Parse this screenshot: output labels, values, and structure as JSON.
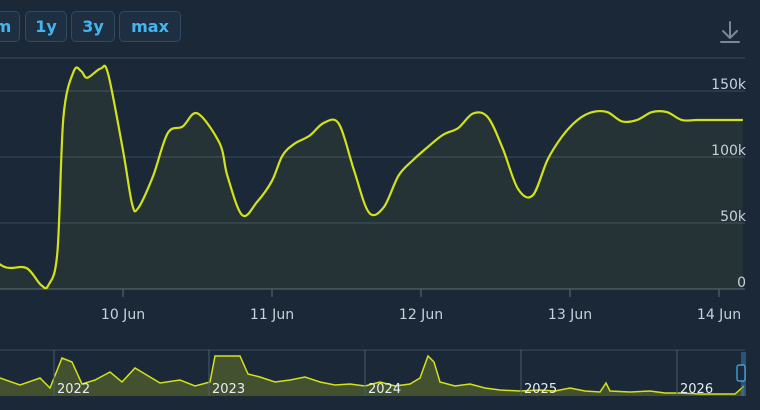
{
  "range_buttons": [
    "m",
    "1y",
    "3y",
    "max"
  ],
  "download_icon": "download-icon",
  "colors": {
    "background": "#1b2838",
    "line": "#d2e21a",
    "grid": "#3a4d62",
    "label": "#c7d2dc",
    "button_text": "#45b5f0"
  },
  "chart_data": {
    "type": "line",
    "title": "",
    "xlabel": "",
    "ylabel": "",
    "x_ticks": [
      "10 Jun",
      "11 Jun",
      "12 Jun",
      "13 Jun",
      "14 Jun"
    ],
    "y_ticks": [
      "0",
      "50k",
      "100k",
      "150k"
    ],
    "ylim": [
      0,
      175000
    ],
    "grid": true,
    "series": [
      {
        "x_days": [
          9.0,
          9.2,
          9.35,
          9.45,
          9.5,
          9.56,
          9.6,
          9.67,
          9.72,
          9.76,
          9.85,
          9.9,
          10.0,
          10.06,
          10.1,
          10.2,
          10.3,
          10.4,
          10.5,
          10.65,
          10.7,
          10.8,
          10.9,
          11.0,
          11.07,
          11.15,
          11.25,
          11.35,
          11.45,
          11.55,
          11.65,
          11.75,
          11.85,
          11.95,
          12.05,
          12.15,
          12.25,
          12.35,
          12.45,
          12.55,
          12.65,
          12.75,
          12.85,
          12.95,
          13.05,
          13.15,
          13.25,
          13.35,
          13.45,
          13.55,
          13.65,
          13.75,
          13.85,
          13.95,
          14.05,
          14.12,
          14.16
        ],
        "values": [
          34000,
          17000,
          16000,
          3000,
          3000,
          28000,
          130000,
          165000,
          165000,
          160000,
          167000,
          163000,
          105000,
          65000,
          61000,
          85000,
          118000,
          123000,
          133000,
          110000,
          86000,
          56000,
          66000,
          82000,
          101000,
          110000,
          116000,
          126000,
          125000,
          90000,
          58000,
          62000,
          86000,
          98000,
          108000,
          117000,
          122000,
          133000,
          130000,
          106000,
          76000,
          71000,
          98000,
          116000,
          128000,
          134000,
          134000,
          127000,
          128000,
          134000,
          134000,
          128000,
          128000,
          128000,
          128000,
          128000,
          128000
        ]
      }
    ],
    "navigator": {
      "year_labels": [
        "2022",
        "2023",
        "2024",
        "2025",
        "2026"
      ]
    }
  }
}
